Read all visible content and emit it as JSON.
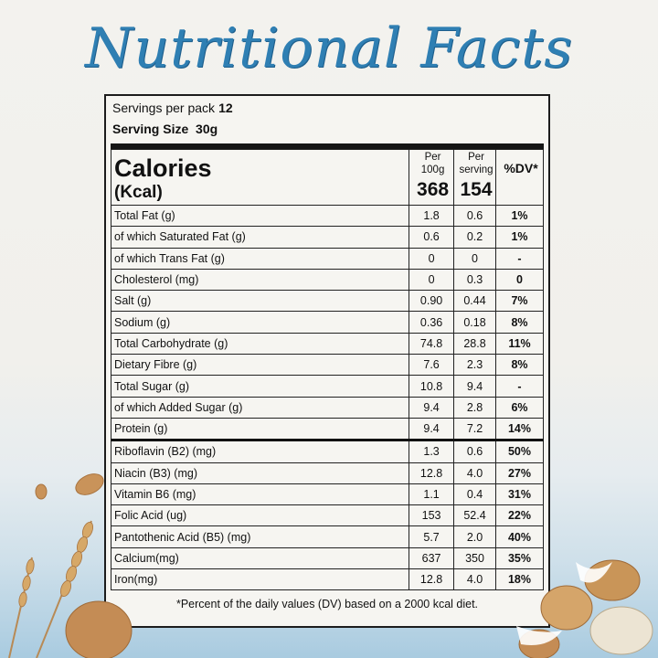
{
  "title": "Nutritional Facts",
  "servings": {
    "label": "Servings per pack",
    "value": "12"
  },
  "serving_size": {
    "label": "Serving Size",
    "value": "30g"
  },
  "header": {
    "calories_label": "Calories",
    "kcal_label": "(Kcal)",
    "per100_line1": "Per",
    "per100_line2": "100g",
    "per100_value": "368",
    "perserv_line1": "Per",
    "perserv_line2": "serving",
    "perserv_value": "154",
    "dv_label": "%DV*"
  },
  "rows": [
    {
      "name": "Total Fat (g)",
      "p100": "1.8",
      "ps": "0.6",
      "dv": "1%"
    },
    {
      "name": " of which Saturated Fat (g)",
      "p100": "0.6",
      "ps": "0.2",
      "dv": "1%"
    },
    {
      "name": " of which Trans Fat (g)",
      "p100": "0",
      "ps": "0",
      "dv": "-"
    },
    {
      "name": "Cholesterol (mg)",
      "p100": "0",
      "ps": "0.3",
      "dv": "0"
    },
    {
      "name": "Salt (g)",
      "p100": "0.90",
      "ps": "0.44",
      "dv": "7%"
    },
    {
      "name": "Sodium (g)",
      "p100": "0.36",
      "ps": "0.18",
      "dv": "8%"
    },
    {
      "name": "Total Carbohydrate (g)",
      "p100": "74.8",
      "ps": "28.8",
      "dv": "11%"
    },
    {
      "name": "Dietary Fibre (g)",
      "p100": "7.6",
      "ps": "2.3",
      "dv": "8%"
    },
    {
      "name": "Total Sugar (g)",
      "p100": "10.8",
      "ps": "9.4",
      "dv": "-"
    },
    {
      "name": " of which Added Sugar (g)",
      "p100": "9.4",
      "ps": "2.8",
      "dv": "6%"
    },
    {
      "name": "Protein (g)",
      "p100": "9.4",
      "ps": "7.2",
      "dv": "14%"
    },
    {
      "name": "Riboflavin (B2) (mg)",
      "p100": "1.3",
      "ps": "0.6",
      "dv": "50%"
    },
    {
      "name": "Niacin (B3) (mg)",
      "p100": "12.8",
      "ps": "4.0",
      "dv": "27%"
    },
    {
      "name": "Vitamin B6 (mg)",
      "p100": "1.1",
      "ps": "0.4",
      "dv": "31%"
    },
    {
      "name": "Folic Acid (ug)",
      "p100": "153",
      "ps": "52.4",
      "dv": "22%"
    },
    {
      "name": "Pantothenic Acid (B5) (mg)",
      "p100": "5.7",
      "ps": "2.0",
      "dv": "40%"
    },
    {
      "name": "Calcium(mg)",
      "p100": "637",
      "ps": "350",
      "dv": "35%"
    },
    {
      "name": "Iron(mg)",
      "p100": "12.8",
      "ps": "4.0",
      "dv": "18%"
    }
  ],
  "footnote": "*Percent of the daily values (DV) based on a 2000 kcal diet."
}
